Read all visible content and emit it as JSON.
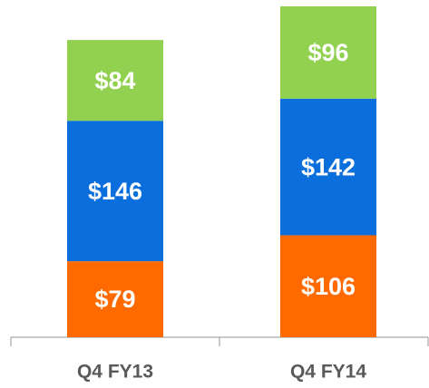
{
  "chart_data": {
    "type": "stacked_bar",
    "categories": [
      "Q4 FY13",
      "Q4 FY14"
    ],
    "series": [
      {
        "color": "#ff6a00",
        "values": [
          79,
          106
        ],
        "value_labels": [
          "$79",
          "$106"
        ]
      },
      {
        "color": "#0a6fdc",
        "values": [
          146,
          142
        ],
        "value_labels": [
          "$146",
          "$142"
        ]
      },
      {
        "color": "#92d050",
        "values": [
          84,
          96
        ],
        "value_labels": [
          "$84",
          "$96"
        ]
      }
    ]
  }
}
